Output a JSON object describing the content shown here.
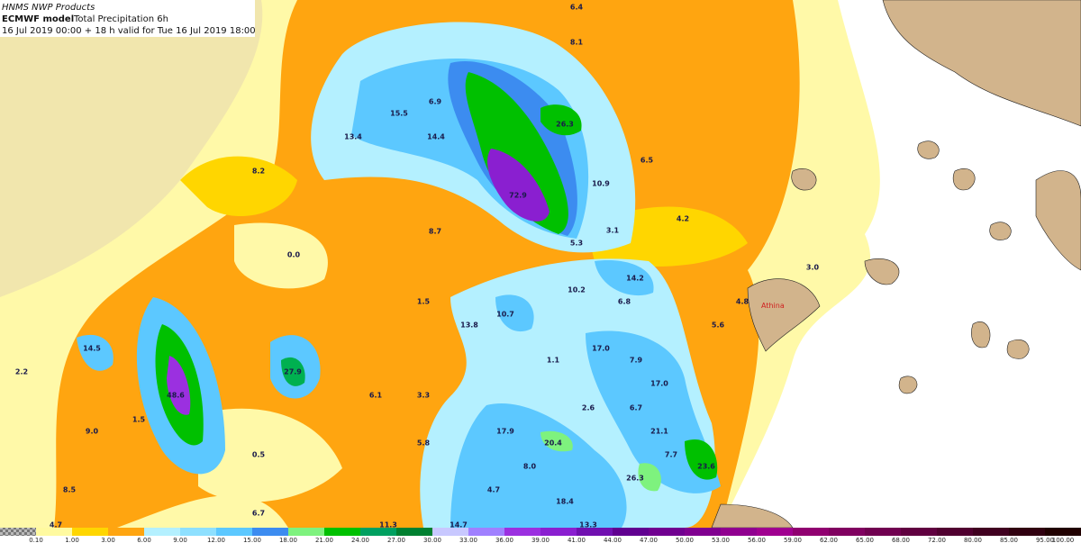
{
  "header": {
    "line1": "HNMS NWP Products",
    "model": "ECMWF model",
    "product": "Total Precipitation 6h",
    "validity": "16 Jul 2019 00:00 + 18 h valid for Tue 16 Jul 2019 18:00"
  },
  "place": "Athina",
  "map_labels": [
    "6.4",
    "8.1",
    "15.5",
    "6.9",
    "13.4",
    "14.4",
    "26.3",
    "72.9",
    "6.5",
    "10.9",
    "8.2",
    "4.2",
    "8.7",
    "5.3",
    "3.1",
    "0.0",
    "3.0",
    "14.2",
    "10.2",
    "6.8",
    "4.8",
    "1.5",
    "10.7",
    "13.8",
    "5.6",
    "14.5",
    "17.0",
    "27.9",
    "1.1",
    "7.9",
    "2.2",
    "48.6",
    "6.1",
    "3.3",
    "17.0",
    "2.6",
    "6.7",
    "1.5",
    "9.0",
    "17.9",
    "20.4",
    "21.1",
    "5.8",
    "0.5",
    "7.7",
    "23.6",
    "8.0",
    "26.3",
    "4.7",
    "8.5",
    "18.4",
    "6.7",
    "4.7",
    "11.3",
    "14.7",
    "13.3"
  ],
  "colorbar": [
    "0.10",
    "1.00",
    "3.00",
    "6.00",
    "9.00",
    "12.00",
    "15.00",
    "18.00",
    "21.00",
    "24.00",
    "27.00",
    "30.00",
    "33.00",
    "36.00",
    "39.00",
    "41.00",
    "44.00",
    "47.00",
    "50.00",
    "53.00",
    "56.00",
    "59.00",
    "62.00",
    "65.00",
    "68.00",
    "72.00",
    "80.00",
    "85.00",
    "95.00",
    "100.00"
  ]
}
